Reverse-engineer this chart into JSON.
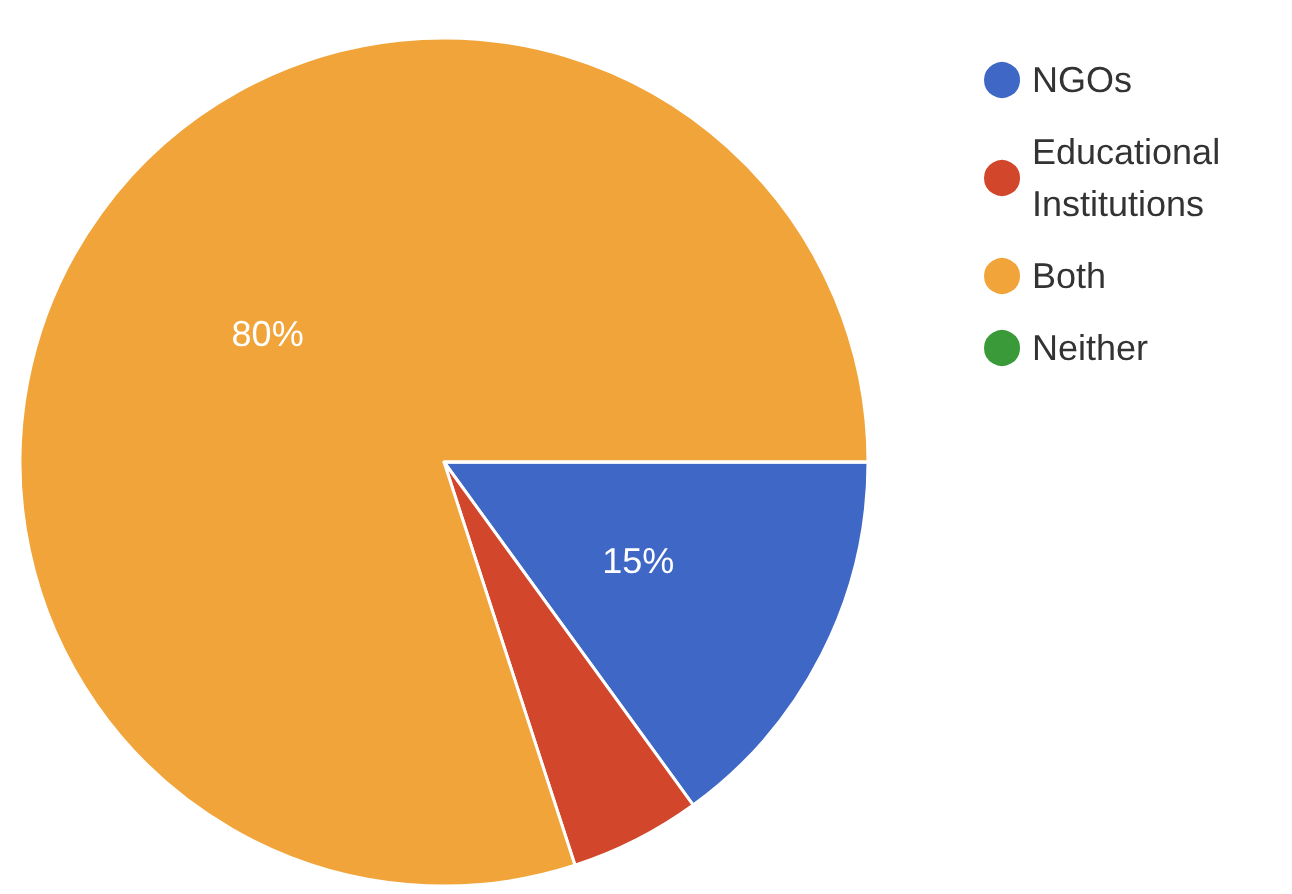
{
  "chart_data": {
    "type": "pie",
    "categories": [
      "NGOs",
      "Educational Institutions",
      "Both",
      "Neither"
    ],
    "values": [
      15,
      5,
      80,
      0
    ],
    "colors": [
      "#3f67c6",
      "#d2462b",
      "#f0a43a",
      "#3a9a3a"
    ],
    "value_labels": [
      "15%",
      null,
      "80%",
      null
    ],
    "legend": "right"
  }
}
